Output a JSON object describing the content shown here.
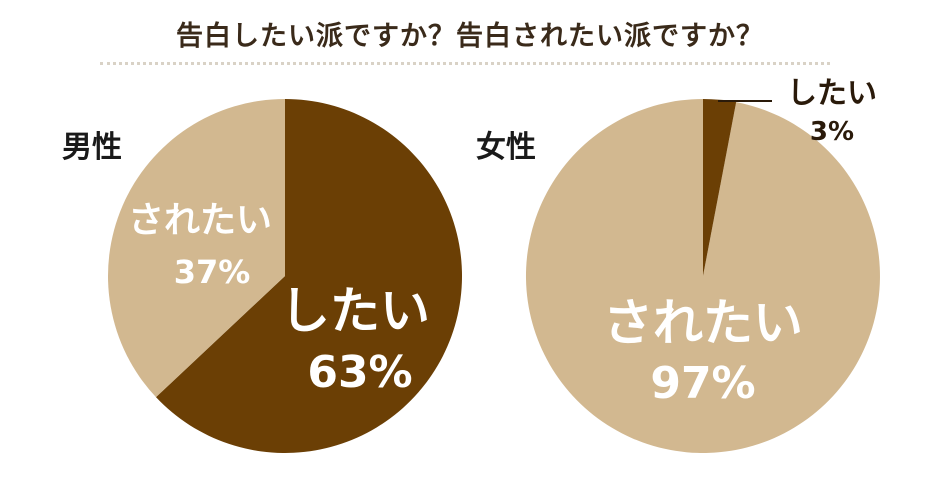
{
  "title": "告白したい派ですか？告白されたい派ですか？",
  "colors": {
    "shitai": "#6b3f05",
    "saretai": "#d2b890",
    "white": "#ffffff",
    "dark": "#2a1a0a"
  },
  "chart_data": [
    {
      "type": "pie",
      "group": "男性",
      "slices": [
        {
          "label": "したい",
          "value": 63,
          "value_label": "63%"
        },
        {
          "label": "されたい",
          "value": 37,
          "value_label": "37%"
        }
      ]
    },
    {
      "type": "pie",
      "group": "女性",
      "slices": [
        {
          "label": "したい",
          "value": 3,
          "value_label": "3%"
        },
        {
          "label": "されたい",
          "value": 97,
          "value_label": "97%"
        }
      ]
    }
  ]
}
